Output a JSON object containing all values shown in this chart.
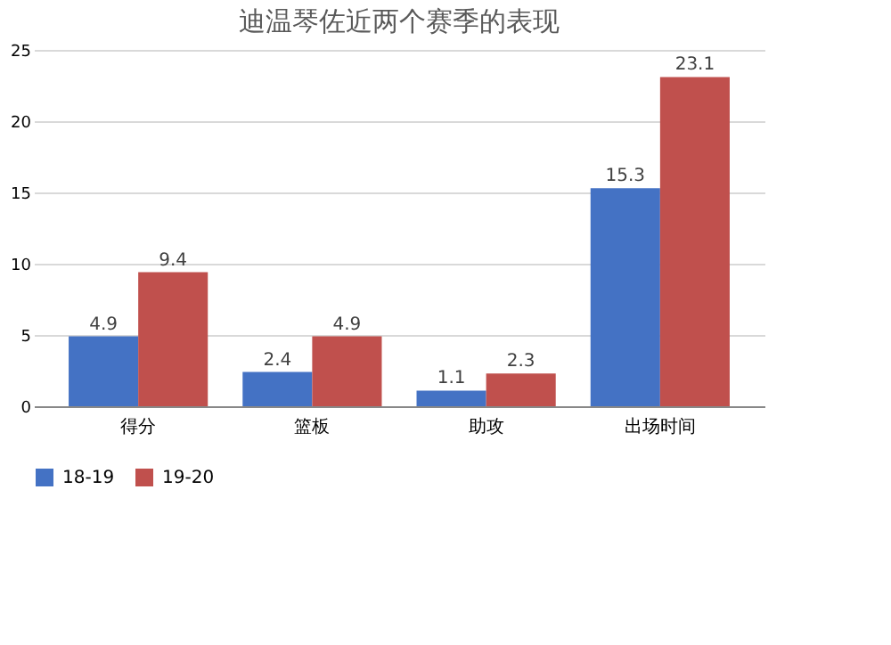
{
  "chart_data": {
    "type": "bar",
    "title": "迪温琴佐近两个赛季的表现",
    "categories": [
      "得分",
      "篮板",
      "助攻",
      "出场时间"
    ],
    "series": [
      {
        "name": "18-19",
        "color": "#4472c4",
        "values": [
          4.9,
          2.4,
          1.1,
          15.3
        ]
      },
      {
        "name": "19-20",
        "color": "#c0504d",
        "values": [
          9.4,
          4.9,
          2.3,
          23.1
        ]
      }
    ],
    "ylim": [
      0,
      25
    ],
    "yticks": [
      0,
      5,
      10,
      15,
      20,
      25
    ],
    "grid": "y",
    "legend": "bottom",
    "data_labels": true
  }
}
